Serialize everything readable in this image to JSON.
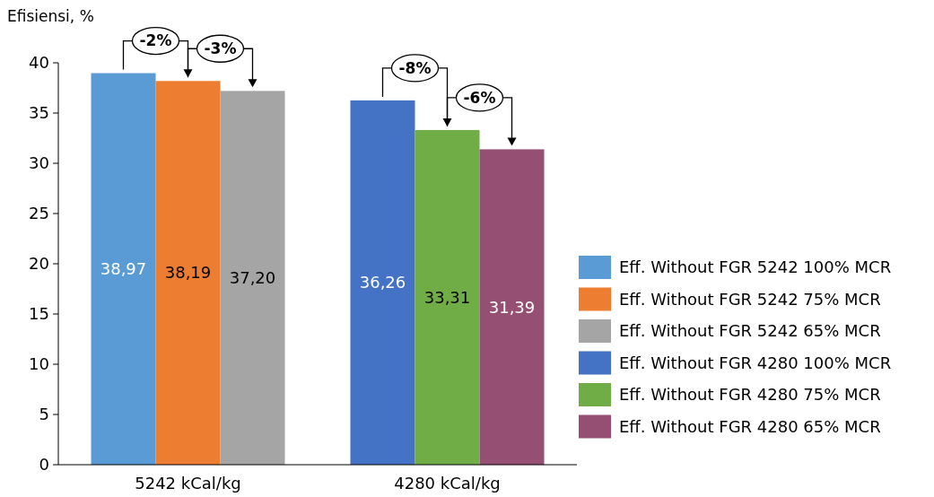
{
  "chart_data": {
    "type": "bar",
    "ylabel": "Efisiensi, %",
    "categories": [
      "5242 kCal/kg",
      "4280 kCal/kg"
    ],
    "series": [
      {
        "name": "Eff. Without FGR 5242 100% MCR",
        "color": "#5b9bd5",
        "values": [
          38.97,
          null
        ],
        "value_labels": [
          "38,97",
          null
        ]
      },
      {
        "name": "Eff. Without FGR 5242 75% MCR",
        "color": "#ed7d31",
        "values": [
          38.19,
          null
        ],
        "value_labels": [
          "38,19",
          null
        ]
      },
      {
        "name": "Eff. Without FGR 5242 65% MCR",
        "color": "#a5a5a5",
        "values": [
          37.2,
          null
        ],
        "value_labels": [
          "37,20",
          null
        ]
      },
      {
        "name": "Eff. Without FGR 4280 100% MCR",
        "color": "#4472c4",
        "values": [
          null,
          36.26
        ],
        "value_labels": [
          null,
          "36,26"
        ]
      },
      {
        "name": "Eff. Without FGR 4280 75% MCR",
        "color": "#70ad47",
        "values": [
          null,
          33.31
        ],
        "value_labels": [
          null,
          "33,31"
        ]
      },
      {
        "name": "Eff. Without FGR 4280 65% MCR",
        "color": "#954f72",
        "values": [
          null,
          31.39
        ],
        "value_labels": [
          null,
          "31,39"
        ]
      }
    ],
    "ylim": [
      0,
      40
    ],
    "yticks": [
      0,
      5,
      10,
      15,
      20,
      25,
      30,
      35,
      40
    ],
    "grid": false,
    "legend": "right",
    "annotations": [
      "-2%",
      "-3%",
      "-8%",
      "-6%"
    ]
  }
}
